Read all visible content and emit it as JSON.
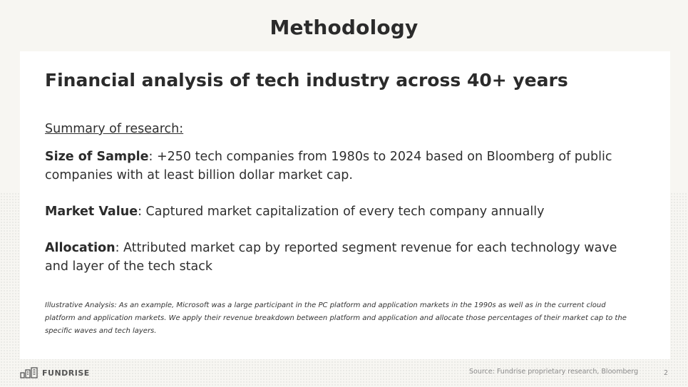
{
  "slide": {
    "title": "Methodology",
    "page_number": "2"
  },
  "card": {
    "heading": "Financial analysis of tech industry across 40+ years",
    "summary_label": "Summary of research:",
    "items": [
      {
        "term": "Size of Sample",
        "text": ": +250 tech companies from 1980s to 2024 based on Bloomberg of public companies with at least billion dollar market cap."
      },
      {
        "term": "Market Value",
        "text": ": Captured market capitalization of every tech company annually"
      },
      {
        "term": "Allocation",
        "text": ": Attributed market cap by reported segment revenue for each technology wave and layer of the tech stack"
      }
    ],
    "note": "Illustrative Analysis: As an example, Microsoft was a large participant in the PC platform and application markets in the 1990s as well as in the current cloud platform and application markets. We apply their revenue breakdown between platform and application and allocate those percentages of their market cap to the specific waves and tech layers."
  },
  "footer": {
    "logo_text": "FUNDRISE",
    "logo_icon": "fundrise-buildings-icon",
    "source": "Source: Fundrise proprietary research, Bloomberg"
  }
}
